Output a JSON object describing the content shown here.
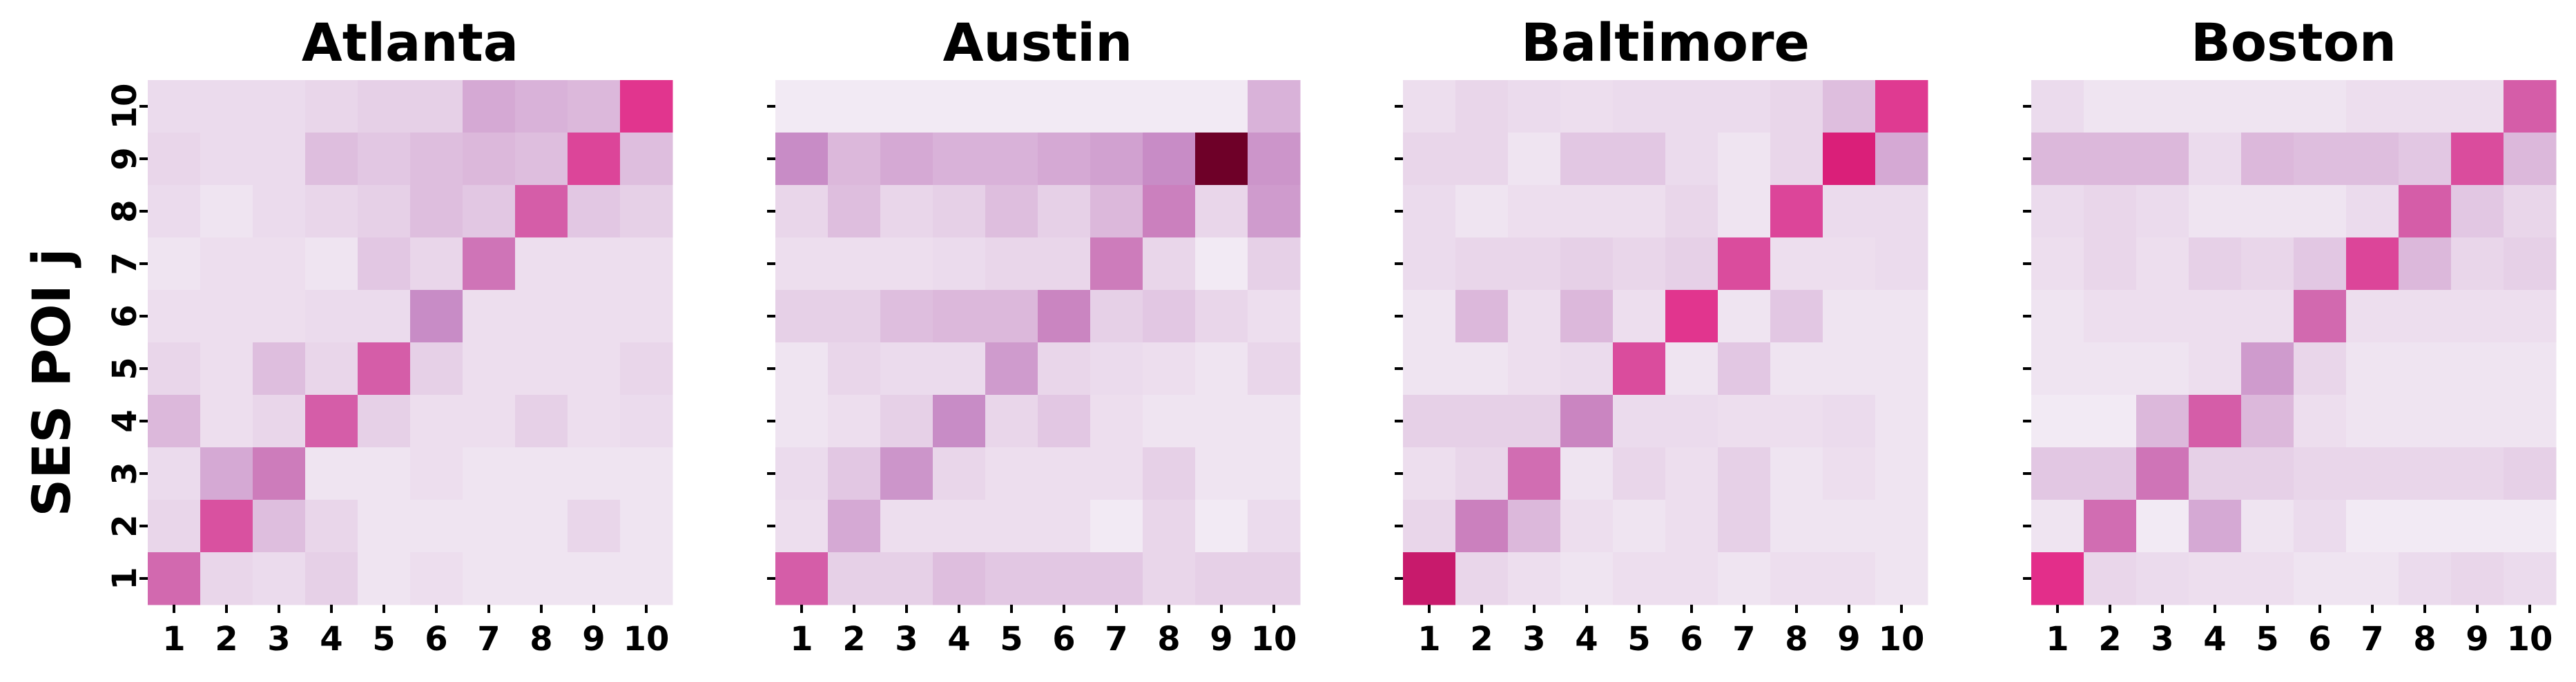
{
  "figure": {
    "ylabel": "SES POI j"
  },
  "chart_data": [
    {
      "type": "heatmap",
      "title": "Atlanta",
      "xlabel": "",
      "ylabel": "SES POI j",
      "x_ticks": [
        "1",
        "2",
        "3",
        "4",
        "5",
        "6",
        "7",
        "8",
        "9",
        "10"
      ],
      "y_ticks": [
        "1",
        "2",
        "3",
        "4",
        "5",
        "6",
        "7",
        "8",
        "9",
        "10"
      ],
      "y_ticks_shown": true,
      "note_rows": "rows listed top to bottom: row 10 first, row 1 last; values are relative color intensity 0..1",
      "values": [
        [
          0.08,
          0.08,
          0.08,
          0.1,
          0.12,
          0.12,
          0.25,
          0.22,
          0.2,
          0.72
        ],
        [
          0.1,
          0.08,
          0.08,
          0.18,
          0.15,
          0.18,
          0.2,
          0.18,
          0.65,
          0.18
        ],
        [
          0.08,
          0.05,
          0.08,
          0.1,
          0.12,
          0.18,
          0.15,
          0.55,
          0.15,
          0.12
        ],
        [
          0.05,
          0.07,
          0.07,
          0.05,
          0.15,
          0.1,
          0.45,
          0.07,
          0.07,
          0.07
        ],
        [
          0.07,
          0.07,
          0.07,
          0.08,
          0.08,
          0.35,
          0.07,
          0.07,
          0.07,
          0.07
        ],
        [
          0.1,
          0.07,
          0.18,
          0.1,
          0.55,
          0.12,
          0.07,
          0.07,
          0.07,
          0.1
        ],
        [
          0.2,
          0.07,
          0.1,
          0.55,
          0.12,
          0.07,
          0.07,
          0.12,
          0.07,
          0.08
        ],
        [
          0.08,
          0.25,
          0.42,
          0.05,
          0.05,
          0.07,
          0.05,
          0.05,
          0.05,
          0.05
        ],
        [
          0.1,
          0.6,
          0.18,
          0.1,
          0.05,
          0.05,
          0.05,
          0.05,
          0.1,
          0.05
        ],
        [
          0.5,
          0.1,
          0.08,
          0.12,
          0.05,
          0.07,
          0.05,
          0.05,
          0.05,
          0.05
        ]
      ]
    },
    {
      "type": "heatmap",
      "title": "Austin",
      "xlabel": "",
      "ylabel": "",
      "x_ticks": [
        "1",
        "2",
        "3",
        "4",
        "5",
        "6",
        "7",
        "8",
        "9",
        "10"
      ],
      "y_ticks": [
        "1",
        "2",
        "3",
        "4",
        "5",
        "6",
        "7",
        "8",
        "9",
        "10"
      ],
      "y_ticks_shown": false,
      "values": [
        [
          0.03,
          0.03,
          0.03,
          0.03,
          0.03,
          0.03,
          0.03,
          0.03,
          0.03,
          0.22
        ],
        [
          0.35,
          0.2,
          0.25,
          0.22,
          0.22,
          0.25,
          0.28,
          0.35,
          1.0,
          0.32
        ],
        [
          0.1,
          0.18,
          0.1,
          0.12,
          0.18,
          0.12,
          0.2,
          0.4,
          0.1,
          0.3
        ],
        [
          0.07,
          0.07,
          0.07,
          0.08,
          0.1,
          0.1,
          0.42,
          0.1,
          0.03,
          0.12
        ],
        [
          0.12,
          0.12,
          0.18,
          0.2,
          0.2,
          0.38,
          0.12,
          0.15,
          0.1,
          0.07
        ],
        [
          0.05,
          0.1,
          0.08,
          0.08,
          0.3,
          0.1,
          0.08,
          0.07,
          0.05,
          0.1
        ],
        [
          0.05,
          0.07,
          0.12,
          0.35,
          0.1,
          0.15,
          0.07,
          0.05,
          0.05,
          0.05
        ],
        [
          0.08,
          0.15,
          0.32,
          0.1,
          0.07,
          0.07,
          0.07,
          0.12,
          0.05,
          0.05
        ],
        [
          0.07,
          0.25,
          0.07,
          0.07,
          0.07,
          0.07,
          0.03,
          0.1,
          0.03,
          0.08
        ],
        [
          0.55,
          0.12,
          0.12,
          0.18,
          0.15,
          0.15,
          0.15,
          0.1,
          0.12,
          0.12
        ]
      ]
    },
    {
      "type": "heatmap",
      "title": "Baltimore",
      "xlabel": "",
      "ylabel": "",
      "x_ticks": [
        "1",
        "2",
        "3",
        "4",
        "5",
        "6",
        "7",
        "8",
        "9",
        "10"
      ],
      "y_ticks": [
        "1",
        "2",
        "3",
        "4",
        "5",
        "6",
        "7",
        "8",
        "9",
        "10"
      ],
      "y_ticks_shown": false,
      "values": [
        [
          0.07,
          0.1,
          0.08,
          0.07,
          0.08,
          0.08,
          0.08,
          0.1,
          0.18,
          0.7
        ],
        [
          0.1,
          0.1,
          0.05,
          0.15,
          0.15,
          0.08,
          0.05,
          0.1,
          0.82,
          0.25
        ],
        [
          0.08,
          0.05,
          0.07,
          0.07,
          0.07,
          0.1,
          0.05,
          0.65,
          0.08,
          0.08
        ],
        [
          0.08,
          0.1,
          0.1,
          0.12,
          0.1,
          0.12,
          0.62,
          0.07,
          0.07,
          0.08
        ],
        [
          0.05,
          0.2,
          0.07,
          0.2,
          0.07,
          0.72,
          0.05,
          0.15,
          0.05,
          0.05
        ],
        [
          0.05,
          0.05,
          0.07,
          0.08,
          0.62,
          0.05,
          0.15,
          0.05,
          0.05,
          0.05
        ],
        [
          0.12,
          0.12,
          0.12,
          0.38,
          0.08,
          0.08,
          0.07,
          0.07,
          0.08,
          0.05
        ],
        [
          0.07,
          0.1,
          0.48,
          0.05,
          0.1,
          0.07,
          0.12,
          0.05,
          0.07,
          0.05
        ],
        [
          0.1,
          0.4,
          0.2,
          0.07,
          0.05,
          0.07,
          0.12,
          0.05,
          0.05,
          0.05
        ],
        [
          0.85,
          0.1,
          0.07,
          0.05,
          0.07,
          0.07,
          0.05,
          0.07,
          0.07,
          0.05
        ]
      ]
    },
    {
      "type": "heatmap",
      "title": "Boston",
      "xlabel": "",
      "ylabel": "",
      "x_ticks": [
        "1",
        "2",
        "3",
        "4",
        "5",
        "6",
        "7",
        "8",
        "9",
        "10"
      ],
      "y_ticks": [
        "1",
        "2",
        "3",
        "4",
        "5",
        "6",
        "7",
        "8",
        "9",
        "10"
      ],
      "y_ticks_shown": false,
      "values": [
        [
          0.08,
          0.05,
          0.05,
          0.05,
          0.05,
          0.05,
          0.07,
          0.07,
          0.07,
          0.55
        ],
        [
          0.2,
          0.2,
          0.2,
          0.08,
          0.2,
          0.18,
          0.18,
          0.15,
          0.62,
          0.2
        ],
        [
          0.08,
          0.1,
          0.08,
          0.05,
          0.05,
          0.05,
          0.08,
          0.55,
          0.15,
          0.1
        ],
        [
          0.07,
          0.1,
          0.07,
          0.12,
          0.1,
          0.15,
          0.65,
          0.2,
          0.1,
          0.12
        ],
        [
          0.05,
          0.07,
          0.07,
          0.07,
          0.07,
          0.5,
          0.07,
          0.07,
          0.07,
          0.07
        ],
        [
          0.05,
          0.05,
          0.05,
          0.07,
          0.3,
          0.1,
          0.05,
          0.05,
          0.05,
          0.05
        ],
        [
          0.03,
          0.03,
          0.2,
          0.55,
          0.2,
          0.07,
          0.05,
          0.05,
          0.05,
          0.05
        ],
        [
          0.15,
          0.15,
          0.45,
          0.12,
          0.12,
          0.1,
          0.1,
          0.1,
          0.1,
          0.12
        ],
        [
          0.05,
          0.48,
          0.03,
          0.25,
          0.05,
          0.08,
          0.03,
          0.03,
          0.03,
          0.03
        ],
        [
          0.75,
          0.1,
          0.08,
          0.07,
          0.07,
          0.05,
          0.05,
          0.08,
          0.1,
          0.08
        ]
      ]
    }
  ]
}
